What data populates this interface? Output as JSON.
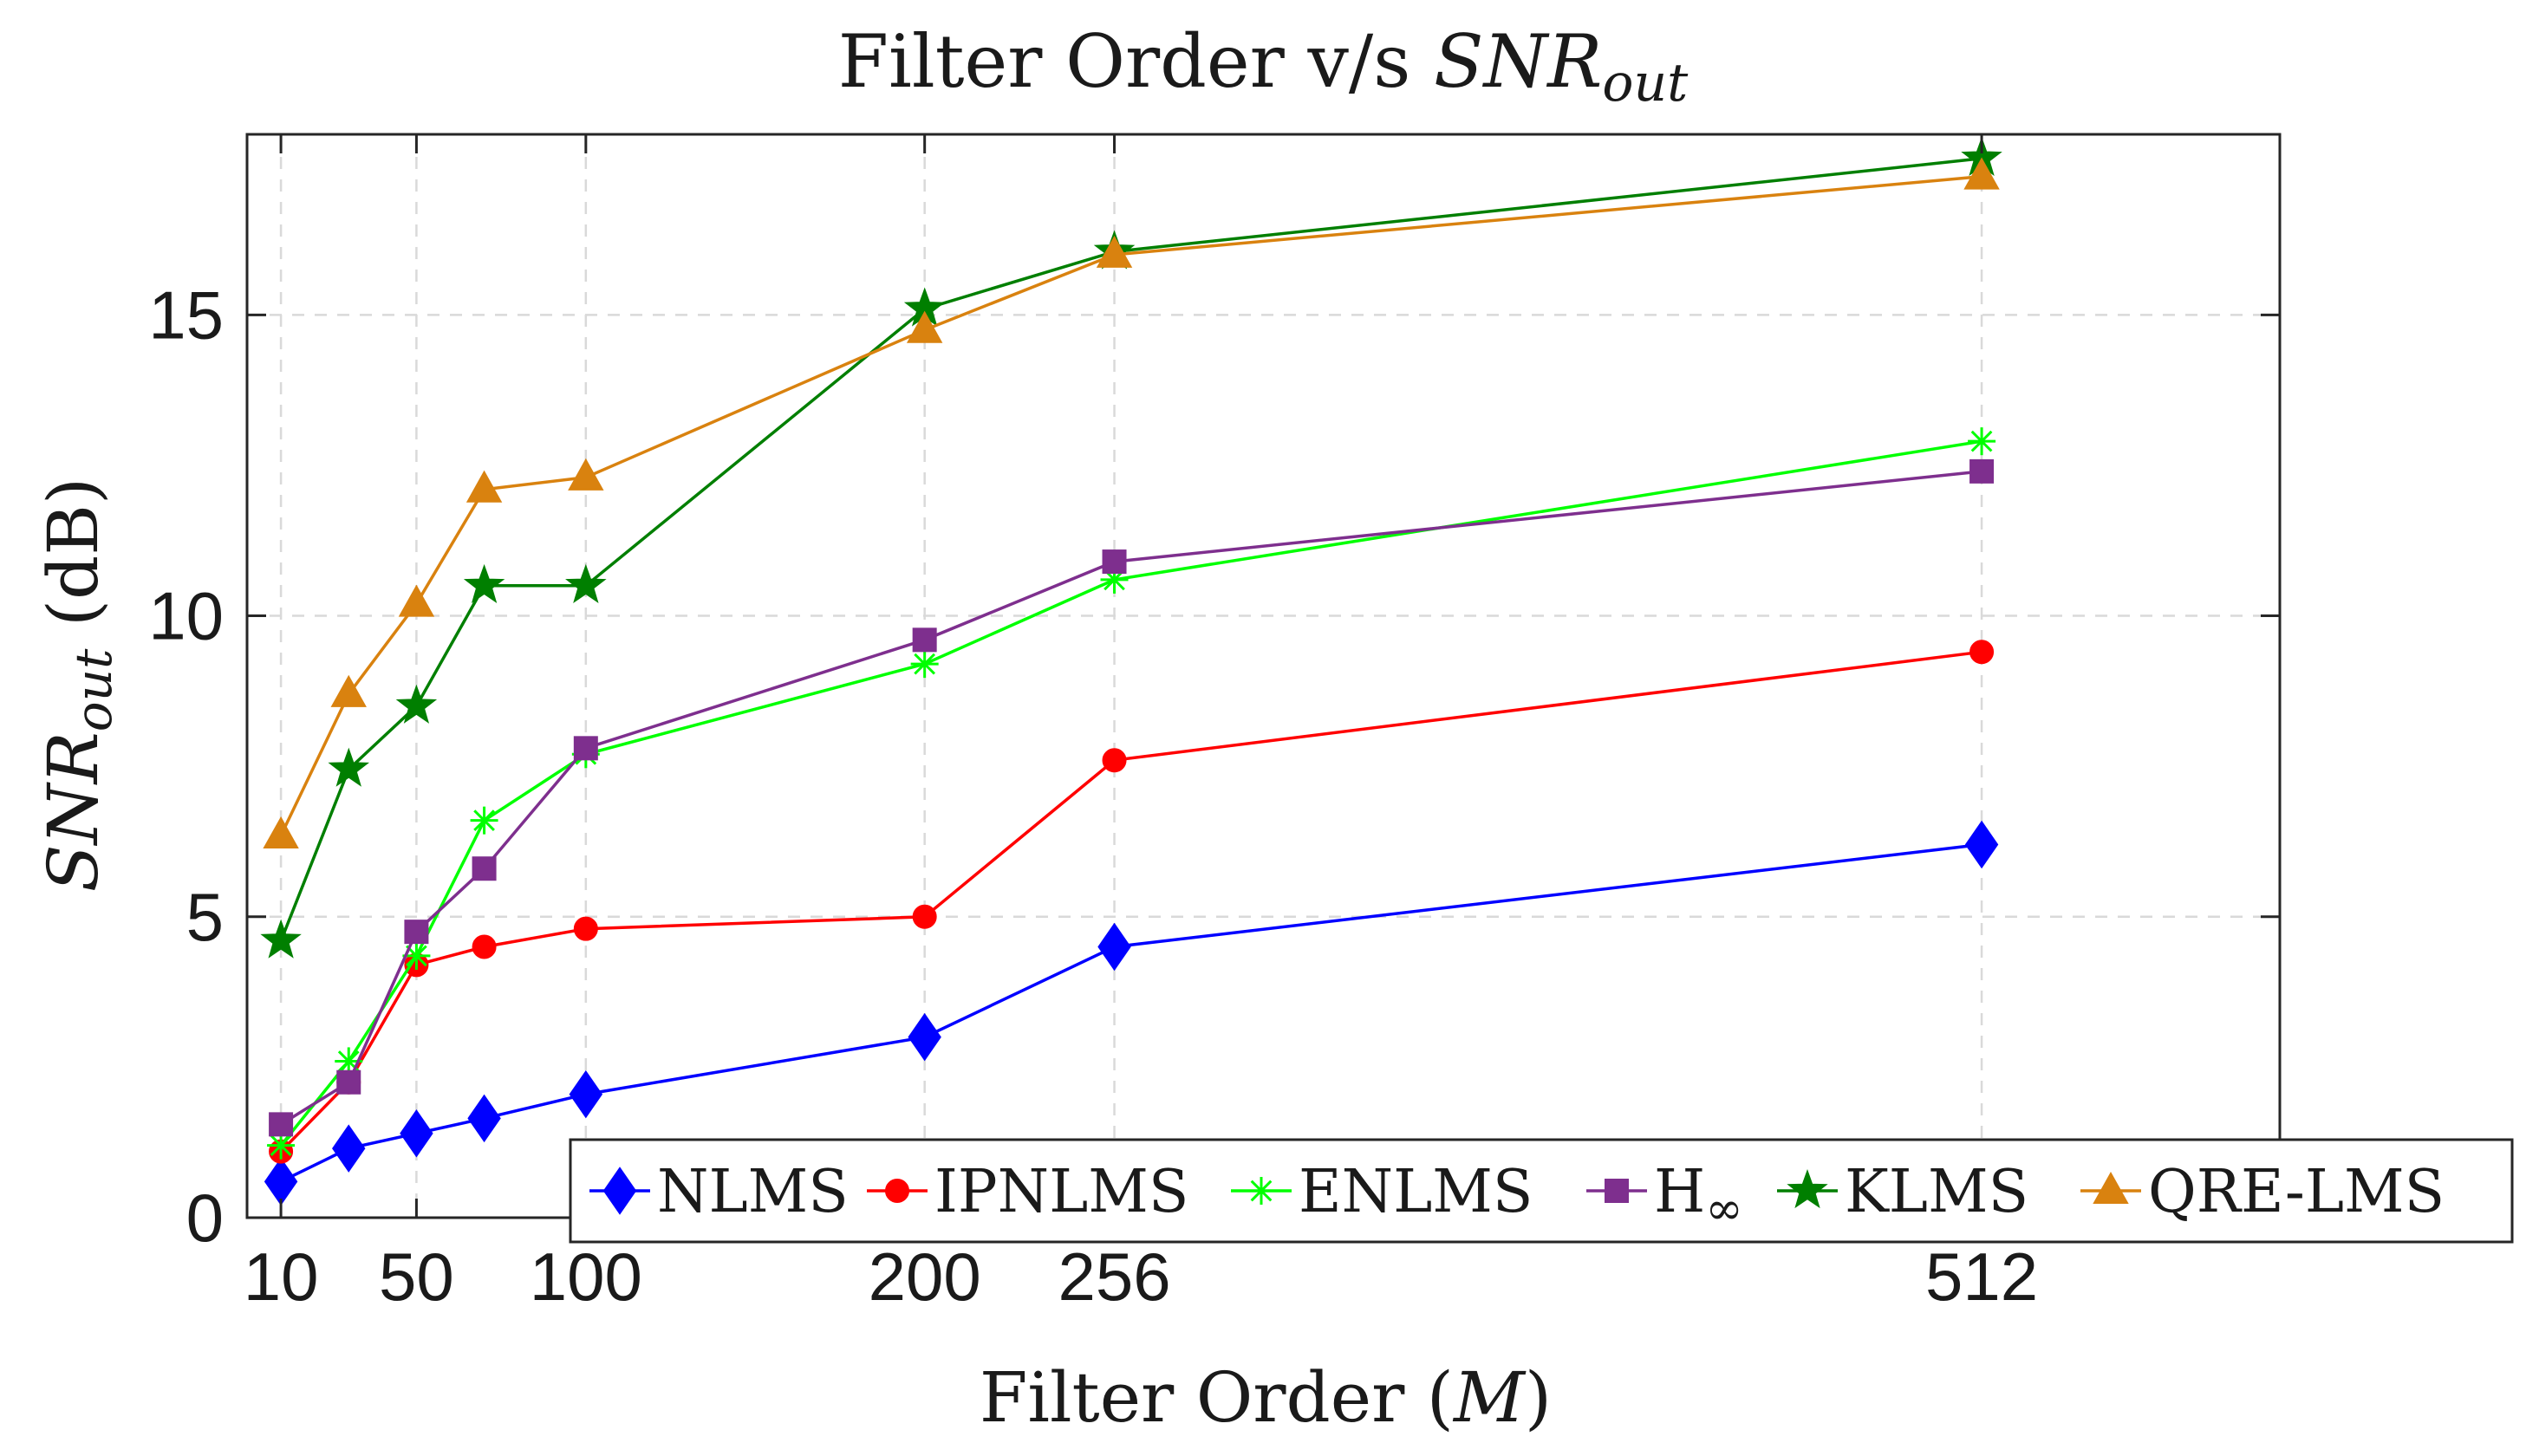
{
  "chart_data": {
    "type": "line",
    "title": {
      "prefix": "Filter Order v/s ",
      "math_main": "SNR",
      "math_sub": "out"
    },
    "xlabel": {
      "prefix": "Filter Order (",
      "math": "M",
      "suffix": ")"
    },
    "ylabel": {
      "math_main": "SNR",
      "math_sub": "out",
      "suffix": " (dB)"
    },
    "xlim": [
      0,
      600
    ],
    "ylim": [
      0,
      18
    ],
    "grid": true,
    "legend_position": "bottom-right",
    "x_ticks": [
      10,
      50,
      100,
      200,
      256,
      512
    ],
    "y_ticks": [
      0,
      5,
      10,
      15
    ],
    "x": [
      10,
      30,
      50,
      70,
      100,
      200,
      256,
      512
    ],
    "series": [
      {
        "name": "NLMS",
        "color": "#0000ff",
        "marker": "diamond",
        "values": [
          0.6,
          1.15,
          1.4,
          1.65,
          2.05,
          3.0,
          4.5,
          6.2
        ]
      },
      {
        "name": "IPNLMS",
        "color": "#ff0000",
        "marker": "circle",
        "values": [
          1.1,
          2.25,
          4.2,
          4.5,
          4.8,
          5.0,
          7.6,
          9.4
        ]
      },
      {
        "name": "ENLMS",
        "color": "#00ff00",
        "marker": "asterisk",
        "values": [
          1.2,
          2.6,
          4.35,
          6.6,
          7.7,
          9.2,
          10.6,
          12.9
        ]
      },
      {
        "name": "H",
        "name_sub": "∞",
        "color": "#7e2f8e",
        "marker": "square",
        "values": [
          1.55,
          2.25,
          4.75,
          5.8,
          7.8,
          9.6,
          10.9,
          12.4
        ]
      },
      {
        "name": "KLMS",
        "color": "#007f00",
        "marker": "star",
        "values": [
          4.6,
          7.45,
          8.5,
          10.5,
          10.5,
          15.1,
          16.05,
          17.6
        ]
      },
      {
        "name": "QRE-LMS",
        "color": "#d9820f",
        "marker": "triangle",
        "values": [
          6.35,
          8.7,
          10.2,
          12.1,
          12.3,
          14.75,
          16.0,
          17.3
        ]
      }
    ]
  }
}
